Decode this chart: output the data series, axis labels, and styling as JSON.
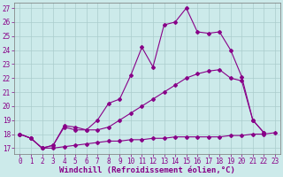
{
  "xlabel": "Windchill (Refroidissement éolien,°C)",
  "background_color": "#cceaea",
  "grid_color": "#aacccc",
  "line_color": "#880088",
  "x_ticks": [
    0,
    1,
    2,
    3,
    4,
    5,
    6,
    7,
    8,
    9,
    10,
    11,
    12,
    13,
    14,
    15,
    16,
    17,
    18,
    19,
    20,
    21,
    22,
    23
  ],
  "ylim": [
    16.6,
    27.4
  ],
  "xlim": [
    -0.5,
    23.5
  ],
  "yticks": [
    17,
    18,
    19,
    20,
    21,
    22,
    23,
    24,
    25,
    26,
    27
  ],
  "line1_x": [
    0,
    1,
    2,
    3,
    4,
    5,
    6,
    7,
    8,
    9,
    10,
    11,
    12,
    13,
    14,
    15,
    16,
    17,
    18,
    19,
    20,
    21,
    22,
    23
  ],
  "line1_y": [
    18.0,
    17.7,
    17.0,
    17.0,
    17.1,
    17.2,
    17.3,
    17.4,
    17.5,
    17.5,
    17.6,
    17.6,
    17.7,
    17.7,
    17.8,
    17.8,
    17.8,
    17.8,
    17.8,
    17.9,
    17.9,
    18.0,
    18.0,
    18.1
  ],
  "line2_x": [
    0,
    1,
    2,
    3,
    4,
    5,
    6,
    7,
    8,
    9,
    10,
    11,
    12,
    13,
    14,
    15,
    16,
    17,
    18,
    19,
    20,
    21,
    22,
    23
  ],
  "line2_y": [
    18.0,
    17.7,
    17.0,
    17.2,
    18.5,
    18.3,
    18.3,
    18.3,
    18.5,
    19.0,
    19.5,
    20.0,
    20.5,
    21.0,
    21.5,
    22.0,
    22.3,
    22.5,
    22.6,
    22.0,
    21.8,
    19.0,
    18.1,
    null
  ],
  "line3_x": [
    0,
    1,
    2,
    3,
    4,
    5,
    6,
    7,
    8,
    9,
    10,
    11,
    12,
    13,
    14,
    15,
    16,
    17,
    18,
    19,
    20,
    21,
    22,
    23
  ],
  "line3_y": [
    18.0,
    17.7,
    17.0,
    17.2,
    18.6,
    18.5,
    18.3,
    19.0,
    20.2,
    20.5,
    22.2,
    24.2,
    22.8,
    25.8,
    26.0,
    27.0,
    25.3,
    25.2,
    25.3,
    24.0,
    22.1,
    19.0,
    18.1,
    null
  ],
  "xlabel_fontsize": 6.5,
  "tick_fontsize": 5.5
}
